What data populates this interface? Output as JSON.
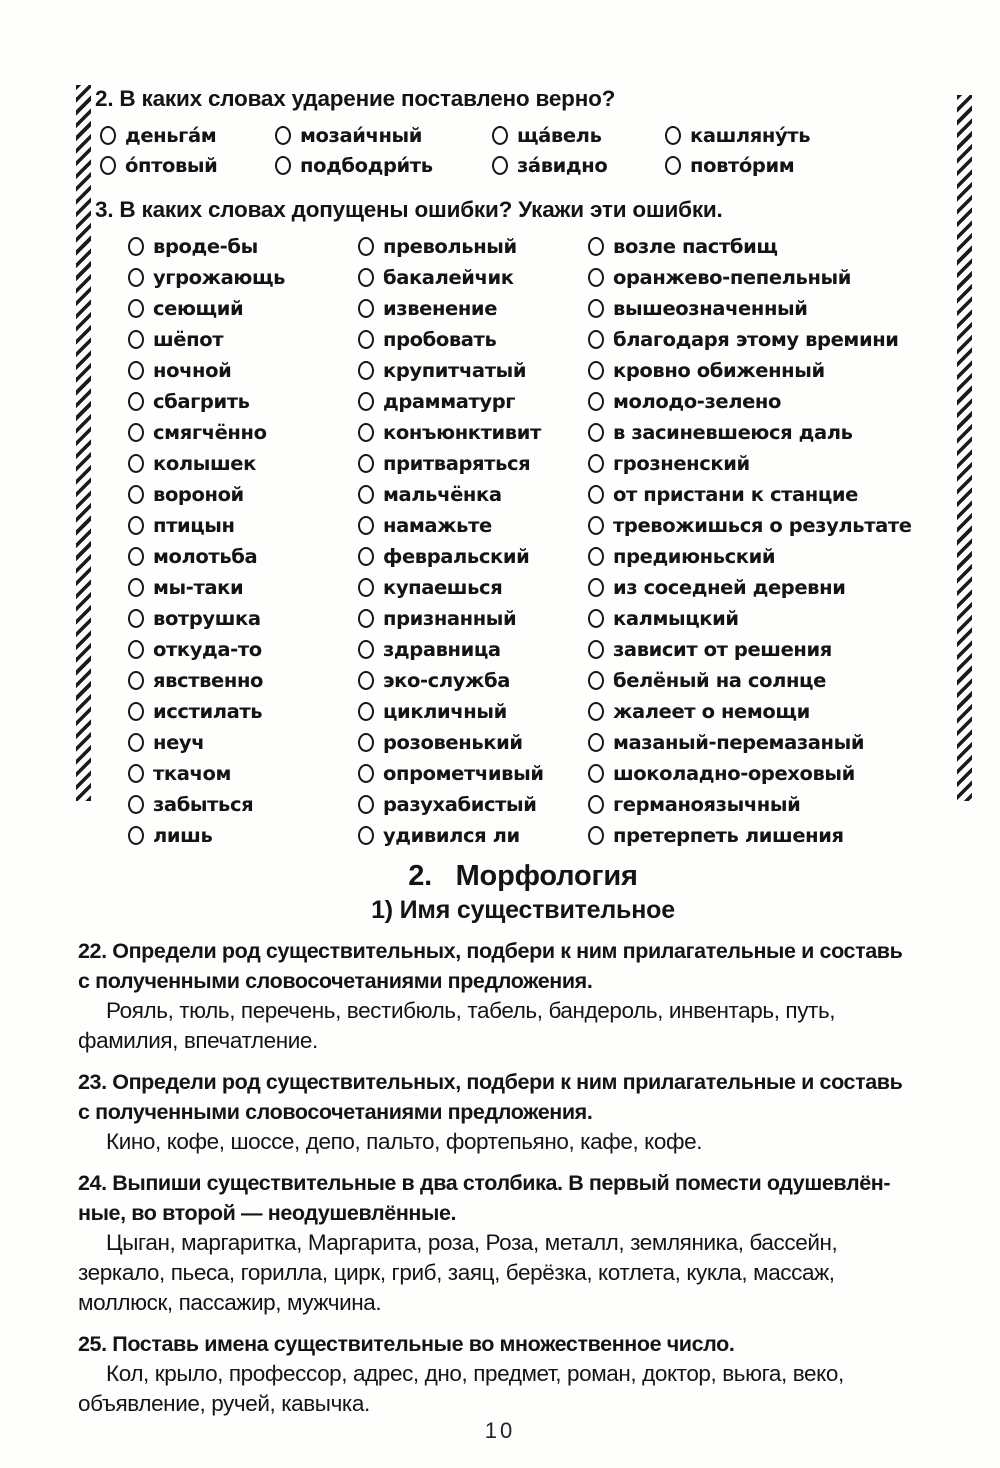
{
  "q2": {
    "title": "2. В каких словах ударение поставлено верно?",
    "options": [
      [
        "деньга́м",
        "мозаи́чный",
        "ща́вель",
        "кашляну́ть"
      ],
      [
        "о́птовый",
        "подбодри́ть",
        "за́видно",
        "повто́рим"
      ]
    ]
  },
  "q3": {
    "title": "3. В каких словах допущены ошибки? Укажи эти ошибки.",
    "words": [
      [
        "вроде-бы",
        "превольный",
        "возле пастбищ"
      ],
      [
        "угрожающь",
        "бакалейчик",
        "оранжево-пепельный"
      ],
      [
        "сеющий",
        "извенение",
        "вышеозначенный"
      ],
      [
        "шёпот",
        "пробовать",
        "благодаря этому времини"
      ],
      [
        "ночной",
        "крупитчатый",
        "кровно обиженный"
      ],
      [
        "сбагрить",
        "драмматург",
        "молодо-зелено"
      ],
      [
        "смягчённо",
        "конъюнктивит",
        "в засиневшеюся даль"
      ],
      [
        "колышек",
        "притваряться",
        "грозненский"
      ],
      [
        "вороной",
        "мальчёнка",
        "от пристани к станцие"
      ],
      [
        "птицын",
        "намажьте",
        "тревожишься о результате"
      ],
      [
        "молотьба",
        "февральский",
        "предиюньский"
      ],
      [
        "мы-таки",
        "купаешься",
        "из соседней деревни"
      ],
      [
        "вотрушка",
        "признанный",
        "калмыцкий"
      ],
      [
        "откуда-то",
        "здравница",
        "зависит от решения"
      ],
      [
        "явственно",
        "эко-служба",
        "белёный на солнце"
      ],
      [
        "исстилать",
        "цикличный",
        "жалеет о немощи"
      ],
      [
        "неуч",
        "розовенький",
        "мазаный-перемазаный"
      ],
      [
        "ткачом",
        "опрометчивый",
        "шоколадно-ореховый"
      ],
      [
        "забыться",
        "разухабистый",
        "германоязычный"
      ],
      [
        "лишь",
        "удивился ли",
        "претерпеть лишения"
      ]
    ]
  },
  "section": {
    "title": "2.   Морфология",
    "subtitle": "1) Имя существительное"
  },
  "ex22": {
    "title_lines": [
      "22. Определи род существительных, подбери к ним прилагательные и составь",
      "с полученными словосочетаниями предложения."
    ],
    "body_lines": [
      "Рояль, тюль, перечень, вестибюль, табель, бандероль, инвентарь, путь,",
      "фамилия, впечатление."
    ]
  },
  "ex23": {
    "title_lines": [
      "23. Определи род существительных, подбери к ним прилагательные и составь",
      "с полученными словосочетаниями предложения."
    ],
    "body_lines": [
      "Кино, кофе, шоссе, депо, пальто, фортепьяно, кафе, кофе."
    ]
  },
  "ex24": {
    "title_lines": [
      "24. Выпиши существительные в два столбика. В первый помести одушевлён-",
      "ные, во второй — неодушевлённые."
    ],
    "body_lines": [
      "Цыган, маргаритка, Маргарита, роза, Роза, металл, земляника, бассейн,",
      "зеркало, пьеса, горилла, цирк, гриб, заяц, берёзка, котлета, кукла, массаж,",
      "моллюск, пассажир, мужчина."
    ]
  },
  "ex25": {
    "title_lines": [
      "25. Поставь имена существительные во множественное число."
    ],
    "body_lines": [
      "Кол, крыло, профессор, адрес, дно, предмет, роман, доктор, вьюга, веко,",
      "объявление, ручей, кавычка."
    ]
  },
  "page_number": "10"
}
